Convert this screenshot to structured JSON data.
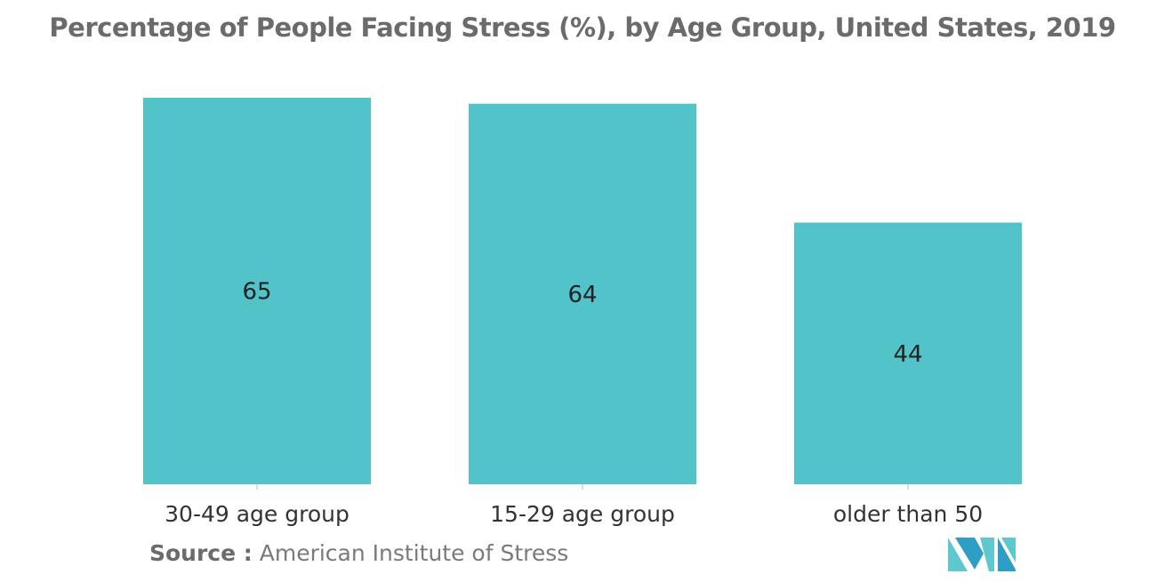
{
  "chart_data": {
    "type": "bar",
    "title": "Percentage of People Facing Stress (%), by Age Group, United States, 2019",
    "categories": [
      "30-49 age group",
      "15-29 age group",
      "older than 50"
    ],
    "values": [
      65,
      64,
      44
    ],
    "data_labels": [
      "65",
      "64",
      "44"
    ],
    "ylim": [
      0,
      65
    ],
    "xlabel": "",
    "ylabel": "",
    "grid": false,
    "legend": "none",
    "bar_color": "#52c3c9"
  },
  "source": {
    "label": "Source :",
    "text": "American Institute of Stress"
  },
  "logo": {
    "icon": "mordor-intelligence-logo",
    "colors": [
      "#2d9fc7",
      "#5fc7ce"
    ]
  }
}
